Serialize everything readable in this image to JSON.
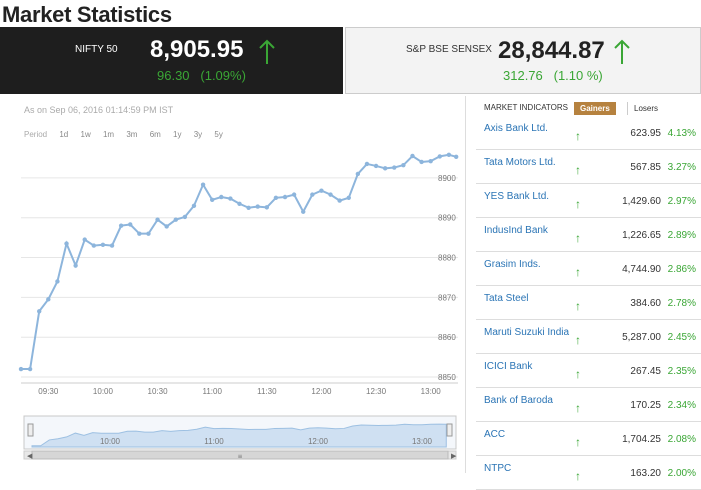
{
  "page": {
    "title": "Market Statistics"
  },
  "indices": [
    {
      "name": "NIFTY 50",
      "value": "8,905.95",
      "change": "96.30",
      "pct": "(1.09%)"
    },
    {
      "name": "S&P BSE SENSEX",
      "value": "28,844.87",
      "change": "312.76",
      "pct": "(1.10 %)"
    }
  ],
  "chart": {
    "as_of": "As on Sep 06, 2016 01:14:59 PM IST",
    "period_label": "Period",
    "periods": [
      "1d",
      "1w",
      "1m",
      "3m",
      "6m",
      "1y",
      "3y",
      "5y"
    ],
    "navigator_labels": [
      "10:00",
      "11:00",
      "12:00",
      "13:00"
    ],
    "colors": {
      "line": "#8db5dc",
      "marker": "#8db5dc",
      "grid": "#e6e6e6"
    }
  },
  "chart_data": {
    "type": "line",
    "title": "",
    "xlabel": "",
    "ylabel": "",
    "x_ticks": [
      "09:30",
      "10:00",
      "10:30",
      "11:00",
      "11:30",
      "12:00",
      "12:30",
      "13:00"
    ],
    "y_ticks": [
      8850,
      8860,
      8870,
      8880,
      8890,
      8900
    ],
    "ylim": [
      8849,
      8906
    ],
    "xlim": [
      "09:15",
      "13:15"
    ],
    "grid": true,
    "series": [
      {
        "x": [
          "09:15",
          "09:20",
          "09:25",
          "09:30",
          "09:35",
          "09:40",
          "09:45",
          "09:50",
          "09:55",
          "10:00",
          "10:05",
          "10:10",
          "10:15",
          "10:20",
          "10:25",
          "10:30",
          "10:35",
          "10:40",
          "10:45",
          "10:50",
          "10:55",
          "11:00",
          "11:05",
          "11:10",
          "11:15",
          "11:20",
          "11:25",
          "11:30",
          "11:35",
          "11:40",
          "11:45",
          "11:50",
          "11:55",
          "12:00",
          "12:05",
          "12:10",
          "12:15",
          "12:20",
          "12:25",
          "12:30",
          "12:35",
          "12:40",
          "12:45",
          "12:50",
          "12:55",
          "13:00",
          "13:05",
          "13:10",
          "13:14"
        ],
        "values": [
          8852.0,
          8852.0,
          8866.5,
          8869.5,
          8874.0,
          8883.5,
          8878.0,
          8884.5,
          8883.0,
          8883.2,
          8883.0,
          8888.0,
          8888.3,
          8886.0,
          8886.0,
          8889.5,
          8887.8,
          8889.5,
          8890.2,
          8893.0,
          8898.3,
          8894.5,
          8895.2,
          8894.8,
          8893.5,
          8892.5,
          8892.8,
          8892.6,
          8895.0,
          8895.2,
          8895.8,
          8891.5,
          8895.8,
          8896.8,
          8895.8,
          8894.3,
          8895.0,
          8901.0,
          8903.5,
          8903.0,
          8902.4,
          8902.6,
          8903.2,
          8905.5,
          8904.0,
          8904.2,
          8905.4,
          8905.8,
          8905.3
        ]
      }
    ]
  },
  "indicators": {
    "heading": "MARKET INDICATORS",
    "tabs": [
      "Gainers",
      "Losers"
    ],
    "rows": [
      {
        "name": "Axis Bank Ltd.",
        "price": "623.95",
        "pct": "4.13%"
      },
      {
        "name": "Tata Motors Ltd.",
        "price": "567.85",
        "pct": "3.27%"
      },
      {
        "name": "YES Bank Ltd.",
        "price": "1,429.60",
        "pct": "2.97%"
      },
      {
        "name": "IndusInd Bank",
        "price": "1,226.65",
        "pct": "2.89%"
      },
      {
        "name": "Grasim Inds.",
        "price": "4,744.90",
        "pct": "2.86%"
      },
      {
        "name": "Tata Steel",
        "price": "384.60",
        "pct": "2.78%"
      },
      {
        "name": "Maruti Suzuki India",
        "price": "5,287.00",
        "pct": "2.45%"
      },
      {
        "name": "ICICI Bank",
        "price": "267.45",
        "pct": "2.35%"
      },
      {
        "name": "Bank of Baroda",
        "price": "170.25",
        "pct": "2.34%"
      },
      {
        "name": "ACC",
        "price": "1,704.25",
        "pct": "2.08%"
      },
      {
        "name": "NTPC",
        "price": "163.20",
        "pct": "2.00%"
      }
    ],
    "arrow_icon": "up-arrow-icon",
    "colors": {
      "up": "#3aa635",
      "link": "#2a74b5",
      "active_tab": "#b6823f"
    }
  }
}
